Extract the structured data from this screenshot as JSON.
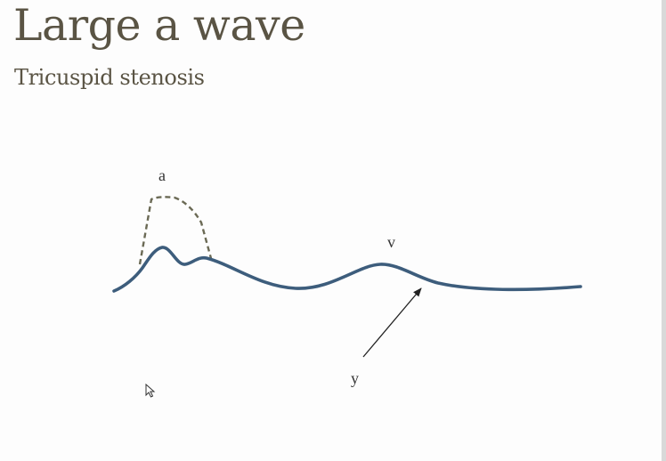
{
  "slide": {
    "title": "Large a wave",
    "subtitle": "Tricuspid stenosis"
  },
  "diagram": {
    "labels": {
      "a": "a",
      "v": "v",
      "y": "y"
    },
    "colors": {
      "waveform": "#3d5d7c",
      "dashed_a_wave": "#6b6a55",
      "arrow": "#222222",
      "text": "#5a5444"
    }
  },
  "icons": {
    "cursor": "mouse-pointer-icon"
  }
}
